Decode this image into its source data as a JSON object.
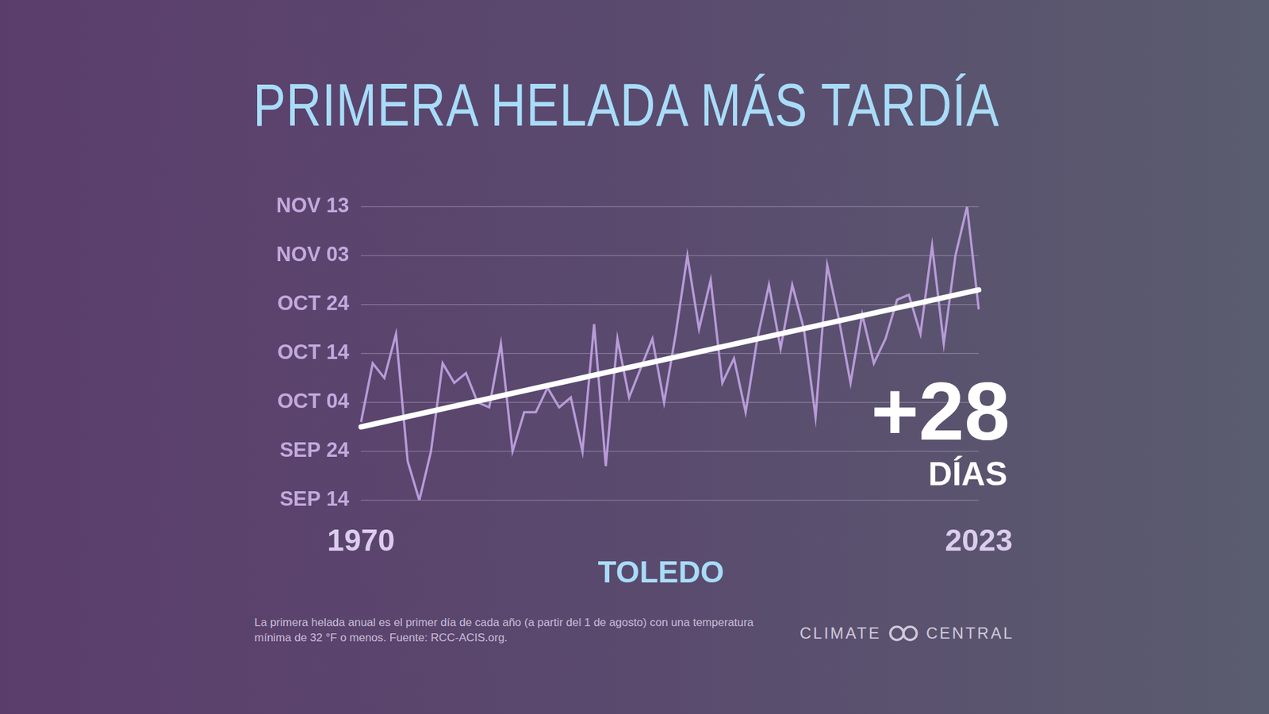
{
  "chart_data": {
    "type": "line",
    "title": "PRIMERA HELADA MÁS TARDÍA",
    "location": "TOLEDO",
    "annotation": {
      "text": "+28",
      "unit": "DÍAS"
    },
    "note": "La primera helada anual es el primer día de cada año (a partir del 1 de agosto) con una temperatura mínima de 32 °F o menos. Fuente: RCC-ACIS.org.",
    "logo": [
      "CLIMATE",
      "CENTRAL"
    ],
    "categories": [
      "1970",
      null,
      null,
      null,
      null,
      null,
      null,
      null,
      null,
      null,
      null,
      null,
      null,
      null,
      null,
      null,
      null,
      null,
      null,
      null,
      null,
      null,
      null,
      null,
      null,
      null,
      null,
      null,
      null,
      null,
      null,
      null,
      null,
      null,
      null,
      null,
      null,
      null,
      null,
      null,
      null,
      null,
      null,
      null,
      null,
      null,
      null,
      null,
      null,
      null,
      null,
      null,
      null,
      "2023"
    ],
    "series": [
      {
        "color": "#b89bd9",
        "values": [
          273,
          285,
          282,
          291,
          265,
          257,
          267,
          285,
          281,
          283,
          277,
          276,
          289,
          267,
          275,
          275,
          280,
          276,
          278,
          267,
          293,
          264,
          290,
          278,
          284,
          290,
          277,
          291,
          307,
          292,
          302,
          281,
          286,
          275,
          290,
          301,
          288,
          301,
          292,
          274,
          305,
          294,
          281,
          295,
          285,
          290,
          298,
          299,
          291,
          309,
          289,
          307,
          317,
          296
        ]
      }
    ],
    "trend": {
      "color": "#ffffff",
      "values": [
        272,
        300
      ]
    },
    "ylim": [
      257,
      317
    ],
    "yticks": [
      {
        "value": 257,
        "label": "SEP 14"
      },
      {
        "value": 267,
        "label": "SEP 24"
      },
      {
        "value": 277,
        "label": "OCT 04"
      },
      {
        "value": 287,
        "label": "OCT 14"
      },
      {
        "value": 297,
        "label": "OCT 24"
      },
      {
        "value": 307,
        "label": "NOV 03"
      },
      {
        "value": 317,
        "label": "NOV 13"
      }
    ],
    "grid": true
  }
}
